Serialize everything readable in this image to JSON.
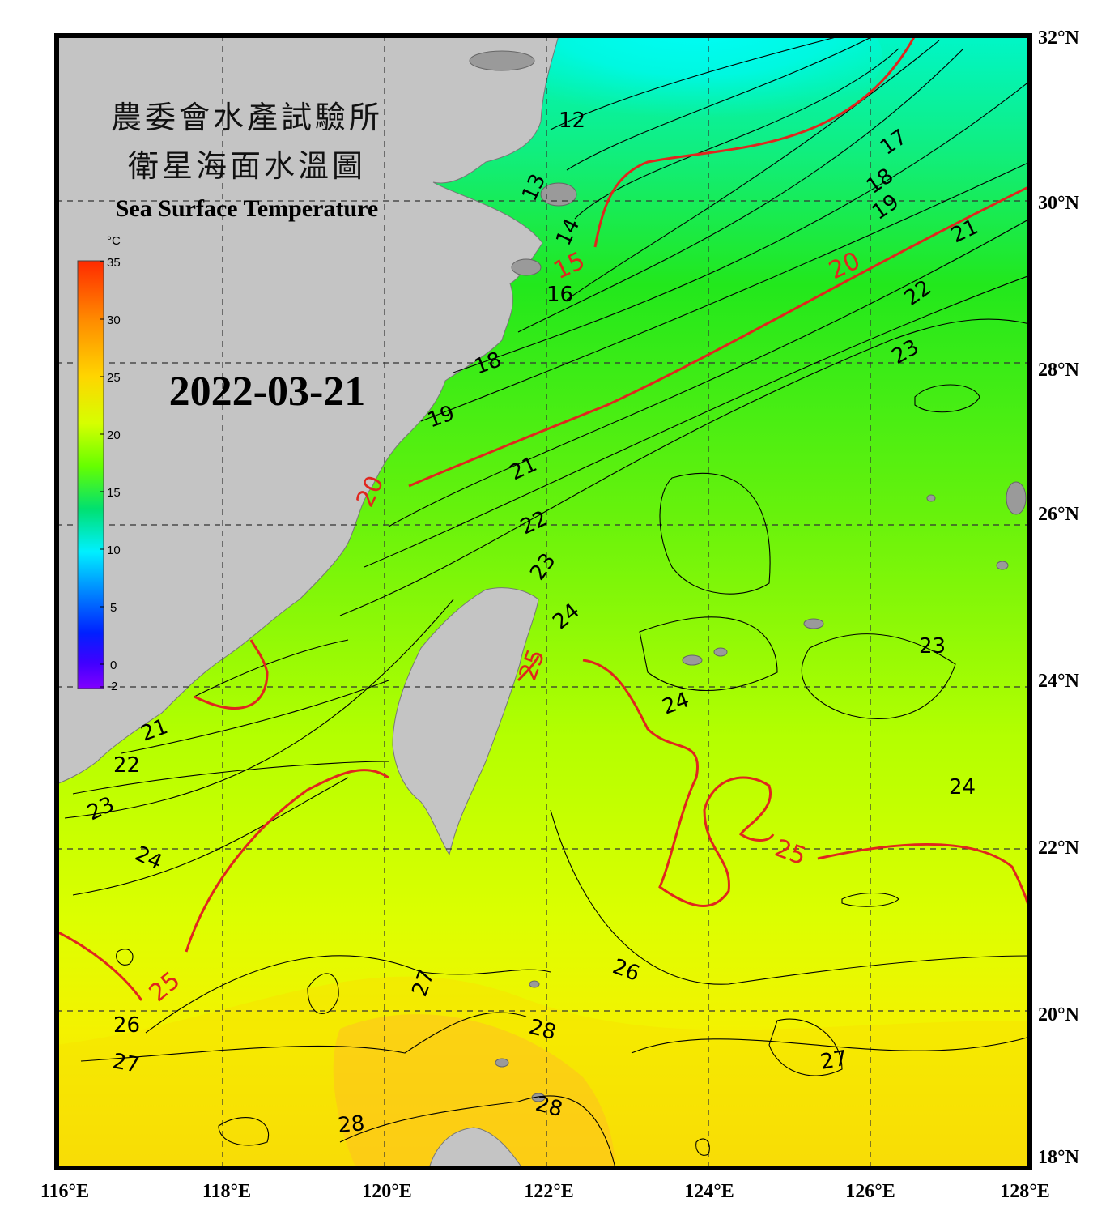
{
  "title": {
    "line1": "農委會水產試驗所",
    "line2": "衛星海面水溫圖",
    "english": "Sea Surface Temperature"
  },
  "date": "2022-03-21",
  "colorbar": {
    "unit": "°C",
    "ticks": [
      "35",
      "30",
      "25",
      "20",
      "15",
      "10",
      "5",
      "0",
      "-2"
    ],
    "colors": [
      "#ff2a00",
      "#ff8c00",
      "#ffd500",
      "#d6ff00",
      "#66ff00",
      "#00e070",
      "#00f0ff",
      "#0080ff",
      "#0020ff",
      "#4000ff",
      "#8000ff"
    ]
  },
  "axes": {
    "longitudes": [
      "116°E",
      "118°E",
      "120°E",
      "122°E",
      "124°E",
      "126°E",
      "128°E"
    ],
    "latitudes": [
      "32°N",
      "30°N",
      "28°N",
      "26°N",
      "24°N",
      "22°N",
      "20°N",
      "18°N"
    ]
  },
  "isotherm_labels": {
    "black": [
      "12",
      "13",
      "14",
      "16",
      "17",
      "18",
      "19",
      "21",
      "22",
      "23",
      "18",
      "19",
      "21",
      "22",
      "23",
      "24",
      "23",
      "24",
      "24",
      "21",
      "22",
      "23",
      "24",
      "26",
      "26",
      "27",
      "27",
      "28",
      "28",
      "27",
      "28"
    ],
    "red": [
      "15",
      "20",
      "20",
      "25",
      "25",
      "25"
    ]
  },
  "colors": {
    "land": "#c4c4c4",
    "cold_water": "#00ffff",
    "mid_water": "#44f21e",
    "warm_water": "#e8ff00",
    "hot_water": "#ffbe1e",
    "major_isotherm": "#e0261e"
  }
}
